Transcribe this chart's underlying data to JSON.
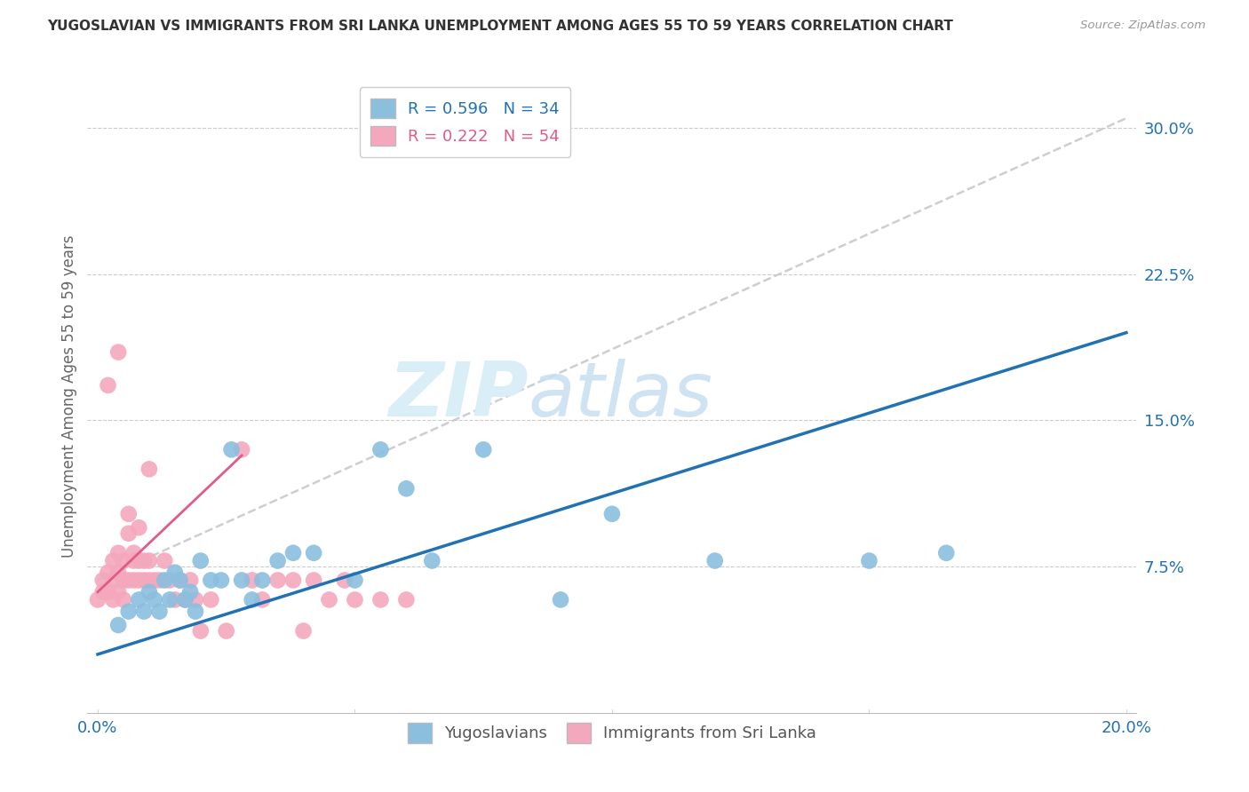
{
  "title": "YUGOSLAVIAN VS IMMIGRANTS FROM SRI LANKA UNEMPLOYMENT AMONG AGES 55 TO 59 YEARS CORRELATION CHART",
  "source": "Source: ZipAtlas.com",
  "ylabel": "Unemployment Among Ages 55 to 59 years",
  "xlim": [
    0.0,
    0.2
  ],
  "ylim": [
    0.0,
    0.32
  ],
  "yticks": [
    0.075,
    0.15,
    0.225,
    0.3
  ],
  "ytick_labels": [
    "7.5%",
    "15.0%",
    "22.5%",
    "30.0%"
  ],
  "xticks": [
    0.0,
    0.05,
    0.1,
    0.15,
    0.2
  ],
  "xtick_labels": [
    "0.0%",
    "",
    "",
    "",
    "20.0%"
  ],
  "blue_R": 0.596,
  "blue_N": 34,
  "pink_R": 0.222,
  "pink_N": 54,
  "blue_color": "#8BBFDE",
  "pink_color": "#F4A8BE",
  "blue_line_color": "#2171b5",
  "pink_line_color": "#e05a8a",
  "dashed_line_color": "#c8c8d0",
  "watermark_color": "#daeef8",
  "blue_line_x0": 0.0,
  "blue_line_y0": 0.03,
  "blue_line_x1": 0.2,
  "blue_line_y1": 0.195,
  "dashed_line_x0": 0.0,
  "dashed_line_y0": 0.068,
  "dashed_line_x1": 0.2,
  "dashed_line_y1": 0.305,
  "pink_line_x0": 0.0,
  "pink_line_y0": 0.062,
  "pink_line_x1": 0.028,
  "pink_line_y1": 0.132,
  "blue_scatter_x": [
    0.004,
    0.006,
    0.008,
    0.009,
    0.01,
    0.011,
    0.012,
    0.013,
    0.014,
    0.015,
    0.016,
    0.017,
    0.018,
    0.019,
    0.02,
    0.022,
    0.024,
    0.026,
    0.028,
    0.03,
    0.032,
    0.035,
    0.038,
    0.042,
    0.05,
    0.055,
    0.06,
    0.065,
    0.075,
    0.09,
    0.1,
    0.12,
    0.15,
    0.165
  ],
  "blue_scatter_y": [
    0.045,
    0.052,
    0.058,
    0.052,
    0.062,
    0.058,
    0.052,
    0.068,
    0.058,
    0.072,
    0.068,
    0.058,
    0.062,
    0.052,
    0.078,
    0.068,
    0.068,
    0.135,
    0.068,
    0.058,
    0.068,
    0.078,
    0.082,
    0.082,
    0.068,
    0.135,
    0.115,
    0.078,
    0.135,
    0.058,
    0.102,
    0.078,
    0.078,
    0.082
  ],
  "pink_scatter_x": [
    0.0,
    0.001,
    0.001,
    0.002,
    0.002,
    0.003,
    0.003,
    0.003,
    0.004,
    0.004,
    0.004,
    0.005,
    0.005,
    0.005,
    0.006,
    0.006,
    0.006,
    0.007,
    0.007,
    0.007,
    0.008,
    0.008,
    0.008,
    0.009,
    0.009,
    0.01,
    0.01,
    0.01,
    0.011,
    0.012,
    0.013,
    0.014,
    0.015,
    0.016,
    0.017,
    0.018,
    0.019,
    0.02,
    0.022,
    0.025,
    0.028,
    0.03,
    0.032,
    0.035,
    0.038,
    0.04,
    0.042,
    0.045,
    0.048,
    0.05,
    0.055,
    0.06,
    0.002,
    0.004
  ],
  "pink_scatter_y": [
    0.058,
    0.062,
    0.068,
    0.062,
    0.072,
    0.058,
    0.068,
    0.078,
    0.062,
    0.072,
    0.082,
    0.058,
    0.068,
    0.078,
    0.092,
    0.102,
    0.068,
    0.082,
    0.068,
    0.078,
    0.068,
    0.078,
    0.095,
    0.068,
    0.078,
    0.068,
    0.078,
    0.125,
    0.068,
    0.068,
    0.078,
    0.068,
    0.058,
    0.068,
    0.058,
    0.068,
    0.058,
    0.042,
    0.058,
    0.042,
    0.135,
    0.068,
    0.058,
    0.068,
    0.068,
    0.042,
    0.068,
    0.058,
    0.068,
    0.058,
    0.058,
    0.058,
    0.168,
    0.185
  ]
}
